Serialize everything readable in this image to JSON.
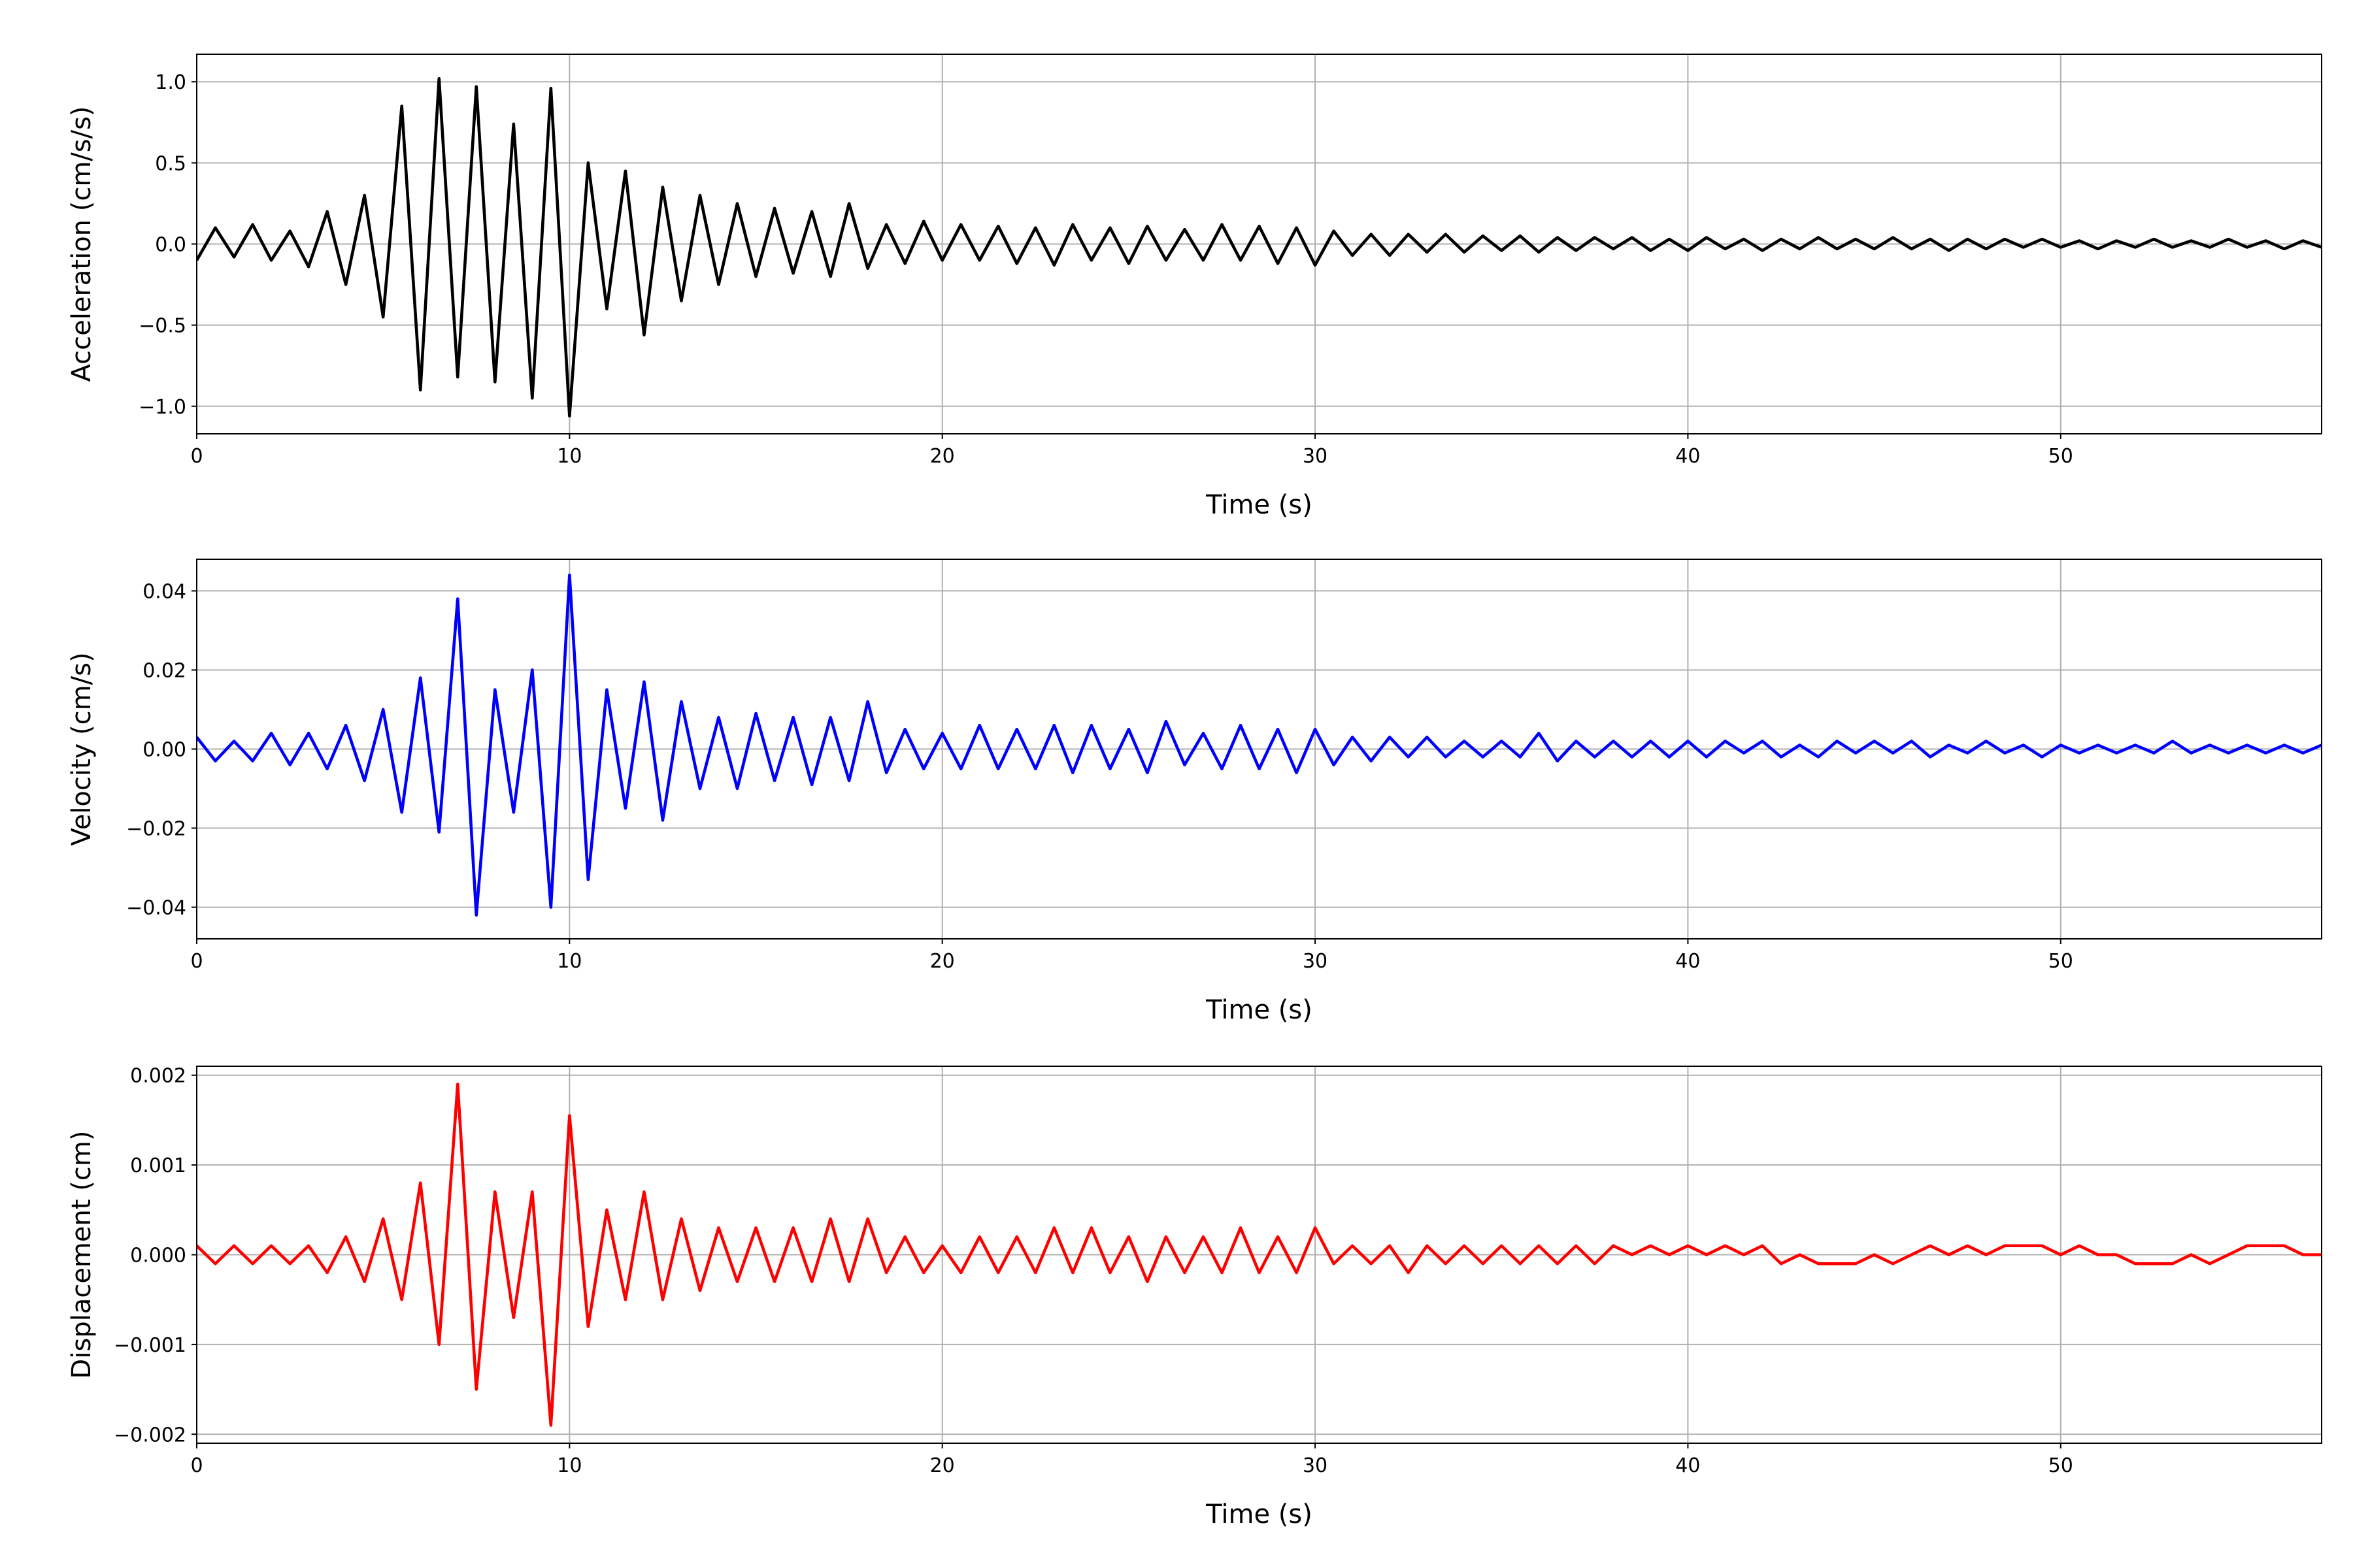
{
  "chart_data": [
    {
      "type": "line",
      "xlabel": "Time (s)",
      "ylabel": "Acceleration (cm/s/s)",
      "color": "#000000",
      "grid": true,
      "xlim": [
        0,
        57
      ],
      "xticks": [
        0,
        10,
        20,
        30,
        40,
        50
      ],
      "ylim": [
        -1.17,
        1.17
      ],
      "yticks": [
        {
          "value": -1,
          "label": "−1.0"
        },
        {
          "value": -0.5,
          "label": "−0.5"
        },
        {
          "value": 0,
          "label": "0.0"
        },
        0.5,
        {
          "value": 1,
          "label": "1.0"
        }
      ],
      "x": [
        0,
        0.5,
        1,
        1.5,
        2,
        2.5,
        3,
        3.5,
        4,
        4.5,
        5,
        5.5,
        6,
        6.5,
        7,
        7.5,
        8,
        8.5,
        9,
        9.5,
        10,
        10.5,
        11,
        11.5,
        12,
        12.5,
        13,
        13.5,
        14,
        14.5,
        15,
        15.5,
        16,
        16.5,
        17,
        17.5,
        18,
        18.5,
        19,
        19.5,
        20,
        20.5,
        21,
        21.5,
        22,
        22.5,
        23,
        23.5,
        24,
        24.5,
        25,
        25.5,
        26,
        26.5,
        27,
        27.5,
        28,
        28.5,
        29,
        29.5,
        30,
        30.5,
        31,
        31.5,
        32,
        32.5,
        33,
        33.5,
        34,
        34.5,
        35,
        35.5,
        36,
        36.5,
        37,
        37.5,
        38,
        38.5,
        39,
        39.5,
        40,
        40.5,
        41,
        41.5,
        42,
        42.5,
        43,
        43.5,
        44,
        44.5,
        45,
        45.5,
        46,
        46.5,
        47,
        47.5,
        48,
        48.5,
        49,
        49.5,
        50,
        50.5,
        51,
        51.5,
        52,
        52.5,
        53,
        53.5,
        54,
        54.5,
        55,
        55.5,
        56,
        56.5,
        57
      ],
      "values": [
        -0.1,
        0.1,
        -0.08,
        0.12,
        -0.1,
        0.08,
        -0.14,
        0.2,
        -0.25,
        0.3,
        -0.45,
        0.85,
        -0.9,
        1.02,
        -0.82,
        0.97,
        -0.85,
        0.74,
        -0.95,
        0.96,
        -1.06,
        0.5,
        -0.4,
        0.45,
        -0.56,
        0.35,
        -0.35,
        0.3,
        -0.25,
        0.25,
        -0.2,
        0.22,
        -0.18,
        0.2,
        -0.2,
        0.25,
        -0.15,
        0.12,
        -0.12,
        0.14,
        -0.1,
        0.12,
        -0.1,
        0.11,
        -0.12,
        0.1,
        -0.13,
        0.12,
        -0.1,
        0.1,
        -0.12,
        0.11,
        -0.1,
        0.09,
        -0.1,
        0.12,
        -0.1,
        0.11,
        -0.12,
        0.1,
        -0.13,
        0.08,
        -0.07,
        0.06,
        -0.07,
        0.06,
        -0.05,
        0.06,
        -0.05,
        0.05,
        -0.04,
        0.05,
        -0.05,
        0.04,
        -0.04,
        0.04,
        -0.03,
        0.04,
        -0.04,
        0.03,
        -0.04,
        0.04,
        -0.03,
        0.03,
        -0.04,
        0.03,
        -0.03,
        0.04,
        -0.03,
        0.03,
        -0.03,
        0.04,
        -0.03,
        0.03,
        -0.04,
        0.03,
        -0.03,
        0.03,
        -0.02,
        0.03,
        -0.02,
        0.02,
        -0.03,
        0.02,
        -0.02,
        0.03,
        -0.02,
        0.02,
        -0.02,
        0.03,
        -0.02,
        0.02,
        -0.03,
        0.02,
        -0.02
      ]
    },
    {
      "type": "line",
      "xlabel": "Time (s)",
      "ylabel": "Velocity (cm/s)",
      "color": "#0000ff",
      "grid": true,
      "xlim": [
        0,
        57
      ],
      "xticks": [
        0,
        10,
        20,
        30,
        40,
        50
      ],
      "ylim": [
        -0.048,
        0.048
      ],
      "yticks": [
        {
          "value": -0.04,
          "label": "−0.04"
        },
        {
          "value": -0.02,
          "label": "−0.02"
        },
        {
          "value": 0,
          "label": "0.00"
        },
        0.02,
        0.04
      ],
      "x": [
        0,
        0.5,
        1,
        1.5,
        2,
        2.5,
        3,
        3.5,
        4,
        4.5,
        5,
        5.5,
        6,
        6.5,
        7,
        7.5,
        8,
        8.5,
        9,
        9.5,
        10,
        10.5,
        11,
        11.5,
        12,
        12.5,
        13,
        13.5,
        14,
        14.5,
        15,
        15.5,
        16,
        16.5,
        17,
        17.5,
        18,
        18.5,
        19,
        19.5,
        20,
        20.5,
        21,
        21.5,
        22,
        22.5,
        23,
        23.5,
        24,
        24.5,
        25,
        25.5,
        26,
        26.5,
        27,
        27.5,
        28,
        28.5,
        29,
        29.5,
        30,
        30.5,
        31,
        31.5,
        32,
        32.5,
        33,
        33.5,
        34,
        34.5,
        35,
        35.5,
        36,
        36.5,
        37,
        37.5,
        38,
        38.5,
        39,
        39.5,
        40,
        40.5,
        41,
        41.5,
        42,
        42.5,
        43,
        43.5,
        44,
        44.5,
        45,
        45.5,
        46,
        46.5,
        47,
        47.5,
        48,
        48.5,
        49,
        49.5,
        50,
        50.5,
        51,
        51.5,
        52,
        52.5,
        53,
        53.5,
        54,
        54.5,
        55,
        55.5,
        56,
        56.5,
        57
      ],
      "values": [
        0.003,
        -0.003,
        0.002,
        -0.003,
        0.004,
        -0.004,
        0.004,
        -0.005,
        0.006,
        -0.008,
        0.01,
        -0.016,
        0.018,
        -0.021,
        0.038,
        -0.042,
        0.015,
        -0.016,
        0.02,
        -0.04,
        0.044,
        -0.033,
        0.015,
        -0.015,
        0.017,
        -0.018,
        0.012,
        -0.01,
        0.008,
        -0.01,
        0.009,
        -0.008,
        0.008,
        -0.009,
        0.008,
        -0.008,
        0.012,
        -0.006,
        0.005,
        -0.005,
        0.004,
        -0.005,
        0.006,
        -0.005,
        0.005,
        -0.005,
        0.006,
        -0.006,
        0.006,
        -0.005,
        0.005,
        -0.006,
        0.007,
        -0.004,
        0.004,
        -0.005,
        0.006,
        -0.005,
        0.005,
        -0.006,
        0.005,
        -0.004,
        0.003,
        -0.003,
        0.003,
        -0.002,
        0.003,
        -0.002,
        0.002,
        -0.002,
        0.002,
        -0.002,
        0.004,
        -0.003,
        0.002,
        -0.002,
        0.002,
        -0.002,
        0.002,
        -0.002,
        0.002,
        -0.002,
        0.002,
        -0.001,
        0.002,
        -0.002,
        0.001,
        -0.002,
        0.002,
        -0.001,
        0.002,
        -0.001,
        0.002,
        -0.002,
        0.001,
        -0.001,
        0.002,
        -0.001,
        0.001,
        -0.002,
        0.001,
        -0.001,
        0.001,
        -0.001,
        0.001,
        -0.001,
        0.002,
        -0.001,
        0.001,
        -0.001,
        0.001,
        -0.001,
        0.001,
        -0.001,
        0.001
      ]
    },
    {
      "type": "line",
      "xlabel": "Time (s)",
      "ylabel": "Displacement (cm)",
      "color": "#ff0000",
      "grid": true,
      "xlim": [
        0,
        57
      ],
      "xticks": [
        0,
        10,
        20,
        30,
        40,
        50
      ],
      "ylim": [
        -0.0021,
        0.0021
      ],
      "yticks": [
        {
          "value": -0.002,
          "label": "−0.002"
        },
        {
          "value": -0.001,
          "label": "−0.001"
        },
        {
          "value": 0,
          "label": "0.000"
        },
        0.001,
        0.002
      ],
      "x": [
        0,
        0.5,
        1,
        1.5,
        2,
        2.5,
        3,
        3.5,
        4,
        4.5,
        5,
        5.5,
        6,
        6.5,
        7,
        7.5,
        8,
        8.5,
        9,
        9.5,
        10,
        10.5,
        11,
        11.5,
        12,
        12.5,
        13,
        13.5,
        14,
        14.5,
        15,
        15.5,
        16,
        16.5,
        17,
        17.5,
        18,
        18.5,
        19,
        19.5,
        20,
        20.5,
        21,
        21.5,
        22,
        22.5,
        23,
        23.5,
        24,
        24.5,
        25,
        25.5,
        26,
        26.5,
        27,
        27.5,
        28,
        28.5,
        29,
        29.5,
        30,
        30.5,
        31,
        31.5,
        32,
        32.5,
        33,
        33.5,
        34,
        34.5,
        35,
        35.5,
        36,
        36.5,
        37,
        37.5,
        38,
        38.5,
        39,
        39.5,
        40,
        40.5,
        41,
        41.5,
        42,
        42.5,
        43,
        43.5,
        44,
        44.5,
        45,
        45.5,
        46,
        46.5,
        47,
        47.5,
        48,
        48.5,
        49,
        49.5,
        50,
        50.5,
        51,
        51.5,
        52,
        52.5,
        53,
        53.5,
        54,
        54.5,
        55,
        55.5,
        56,
        56.5,
        57
      ],
      "values": [
        0.0001,
        -0.0001,
        0.0001,
        -0.0001,
        0.0001,
        -0.0001,
        0.0001,
        -0.0002,
        0.0002,
        -0.0003,
        0.0004,
        -0.0005,
        0.0008,
        -0.001,
        0.0019,
        -0.0015,
        0.0007,
        -0.0007,
        0.0007,
        -0.0019,
        0.00155,
        -0.0008,
        0.0005,
        -0.0005,
        0.0007,
        -0.0005,
        0.0004,
        -0.0004,
        0.0003,
        -0.0003,
        0.0003,
        -0.0003,
        0.0003,
        -0.0003,
        0.0004,
        -0.0003,
        0.0004,
        -0.0002,
        0.0002,
        -0.0002,
        0.0001,
        -0.0002,
        0.0002,
        -0.0002,
        0.0002,
        -0.0002,
        0.0003,
        -0.0002,
        0.0003,
        -0.0002,
        0.0002,
        -0.0003,
        0.0002,
        -0.0002,
        0.0002,
        -0.0002,
        0.0003,
        -0.0002,
        0.0002,
        -0.0002,
        0.0003,
        -0.0001,
        0.0001,
        -0.0001,
        0.0001,
        -0.0002,
        0.0001,
        -0.0001,
        0.0001,
        -0.0001,
        0.0001,
        -0.0001,
        0.0001,
        -0.0001,
        0.0001,
        -0.0001,
        0.0001,
        0,
        0.0001,
        0,
        0.0001,
        0,
        0.0001,
        0,
        0.0001,
        -0.0001,
        0,
        -0.0001,
        -0.0001,
        -0.0001,
        0,
        -0.0001,
        0,
        0.0001,
        0,
        0.0001,
        0,
        0.0001,
        0.0001,
        0.0001,
        0,
        0.0001,
        0,
        0,
        -0.0001,
        -0.0001,
        -0.0001,
        0,
        -0.0001,
        0,
        0.0001,
        0.0001,
        0.0001,
        0,
        0
      ]
    }
  ]
}
